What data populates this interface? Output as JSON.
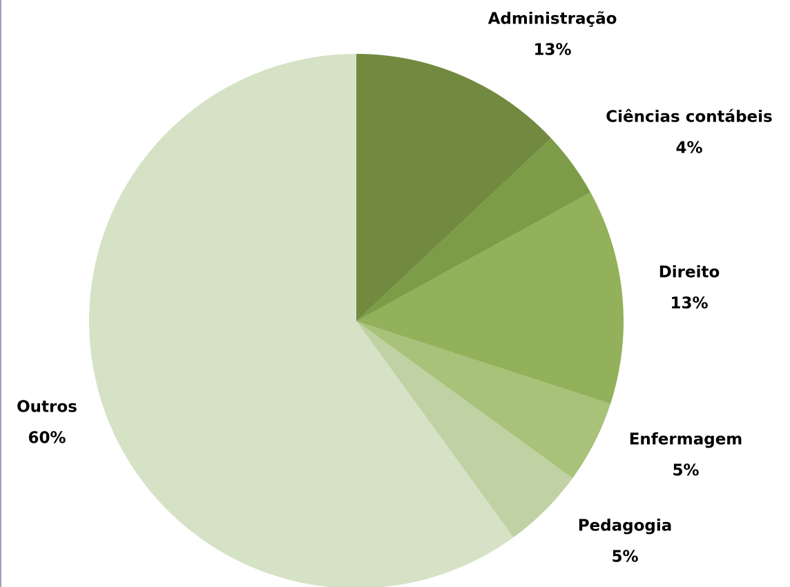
{
  "chart_data": {
    "type": "pie",
    "categories": [
      "Administração",
      "Ciências contábeis",
      "Direito",
      "Enfermagem",
      "Pedagogia",
      "Outros"
    ],
    "values": [
      13,
      4,
      13,
      5,
      5,
      60
    ],
    "value_labels": [
      "13%",
      "4%",
      "13%",
      "5%",
      "5%",
      "60%"
    ],
    "colors": [
      "#718a3f",
      "#7d9c48",
      "#93b05a",
      "#a8c27a",
      "#c0d2a4",
      "#d6e2c6"
    ]
  }
}
